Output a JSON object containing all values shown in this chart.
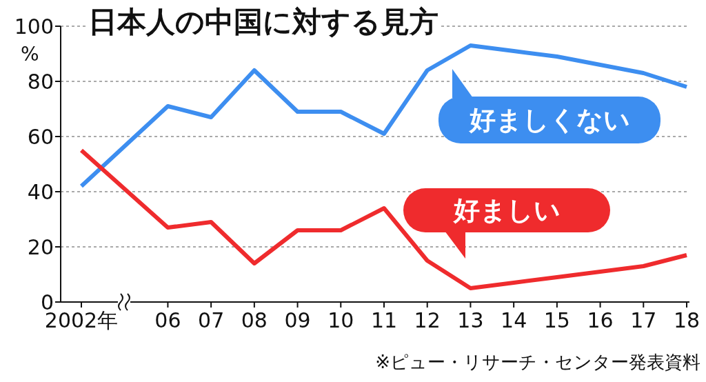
{
  "chart_data": {
    "type": "line",
    "title": "日本人の中国に対する見方",
    "ylabel": "%",
    "categories": [
      "2002年",
      null,
      "06",
      "07",
      "08",
      "09",
      "10",
      "11",
      "12",
      "13",
      "14",
      "15",
      "16",
      "17",
      "18"
    ],
    "series": [
      {
        "name": "好ましくない",
        "color": "#3d8ef0",
        "values": [
          42,
          null,
          71,
          67,
          84,
          69,
          69,
          61,
          84,
          93,
          91,
          89,
          86,
          83,
          78
        ]
      },
      {
        "name": "好ましい",
        "color": "#ef2b2d",
        "values": [
          55,
          null,
          27,
          29,
          14,
          26,
          26,
          34,
          15,
          5,
          7,
          9,
          11,
          13,
          17
        ]
      }
    ],
    "ylim": [
      0,
      100
    ],
    "yticks": [
      0,
      20,
      40,
      60,
      80,
      100
    ],
    "grid": "y",
    "legend": "right",
    "marker": "none",
    "line_style": "solid",
    "annotations": [
      "※ピュー・リサーチ・センター発表資料"
    ]
  }
}
